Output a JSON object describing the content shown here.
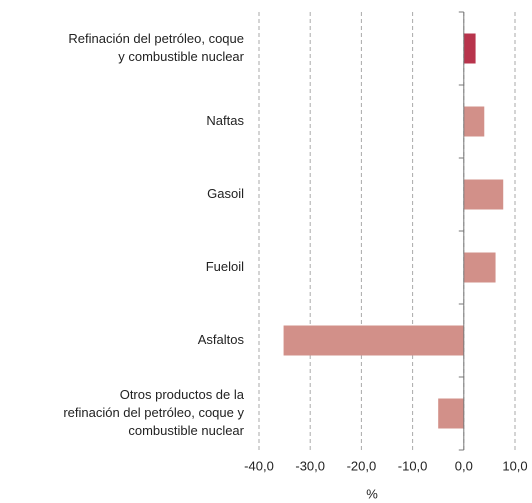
{
  "chart_data": {
    "type": "barh",
    "categories": [
      [
        "Refinación del petróleo, coque",
        "y combustible nuclear"
      ],
      [
        "Naftas"
      ],
      [
        "Gasoil"
      ],
      [
        "Fueloil"
      ],
      [
        "Asfaltos"
      ],
      [
        "Otros productos de la",
        "refinación del petróleo, coque y",
        "combustible nuclear"
      ]
    ],
    "values": [
      2.3,
      4.0,
      7.7,
      6.2,
      -35.2,
      -5.0
    ],
    "colors": [
      "#b8344c",
      "#d29089",
      "#d29089",
      "#d29089",
      "#d29089",
      "#d29089"
    ],
    "xlim": [
      -40,
      10
    ],
    "xticks": [
      {
        "value": -40,
        "label": "-40,0"
      },
      {
        "value": -30,
        "label": "-30,0"
      },
      {
        "value": -20,
        "label": "-20,0"
      },
      {
        "value": -10,
        "label": "-10,0"
      },
      {
        "value": 0,
        "label": "0,0"
      },
      {
        "value": 10,
        "label": "10,0"
      }
    ],
    "xlabel": "%",
    "grid": true
  }
}
